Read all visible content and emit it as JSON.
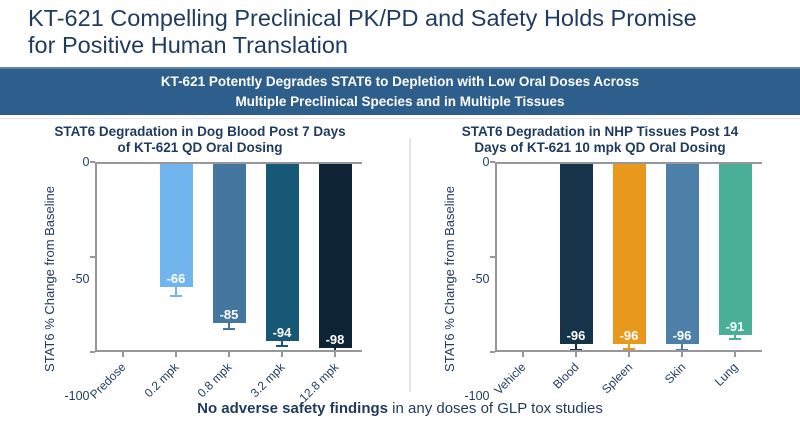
{
  "slide": {
    "title_line1": "KT-621 Compelling Preclinical PK/PD and Safety Holds Promise",
    "title_line2": "for Positive Human Translation",
    "banner_line1": "KT-621 Potently Degrades STAT6 to Depletion with Low Oral Doses Across",
    "banner_line2": "Multiple Preclinical Species and in Multiple Tissues",
    "footnote_bold": "No adverse safety findings",
    "footnote_rest": " in any doses of GLP tox studies"
  },
  "colors": {
    "title_text": "#1f3b5f",
    "banner_bg": "#2e5e8c",
    "banner_text": "#ffffff",
    "axis_line": "#97979b",
    "tick_text": "#1e3a5e",
    "divider": "#e4e4e4",
    "value_label_text": "#ffffff"
  },
  "chart_data": [
    {
      "type": "bar",
      "title_line1": "STAT6 Degradation in Dog Blood Post 7 Days",
      "title_line2": "of KT-621 QD Oral Dosing",
      "ylabel": "STAT6 % Change from Baseline",
      "ylim": [
        0,
        -100
      ],
      "yticks": [
        0,
        -50,
        -100
      ],
      "grid": false,
      "categories": [
        "Predose",
        "0.2 mpk",
        "0.8 mpk",
        "3.2 mpk",
        "12.8 mpk"
      ],
      "values": [
        null,
        -66,
        -85,
        -94,
        -98
      ],
      "value_labels": [
        "",
        "-66",
        "-85",
        "-94",
        "-98"
      ],
      "error_extents": [
        0,
        4,
        2,
        2,
        1
      ],
      "bar_colors": [
        null,
        "#70b5ee",
        "#44779f",
        "#175876",
        "#0e2435"
      ]
    },
    {
      "type": "bar",
      "title_line1": "STAT6 Degradation in NHP Tissues Post 14",
      "title_line2": "Days of KT-621 10 mpk QD Oral Dosing",
      "ylabel": "STAT6 % Change from Baseline",
      "ylim": [
        0,
        -100
      ],
      "yticks": [
        0,
        -50,
        -100
      ],
      "grid": false,
      "categories": [
        "Vehicle",
        "Blood",
        "Spleen",
        "Skin",
        "Lung"
      ],
      "values": [
        null,
        -96,
        -96,
        -96,
        -91
      ],
      "value_labels": [
        "",
        "-96",
        "-96",
        "-96",
        "-91"
      ],
      "error_extents": [
        0,
        2,
        1.5,
        2,
        1.5
      ],
      "bar_colors": [
        null,
        "#153349",
        "#e8981d",
        "#4c80a8",
        "#49af97"
      ]
    }
  ]
}
